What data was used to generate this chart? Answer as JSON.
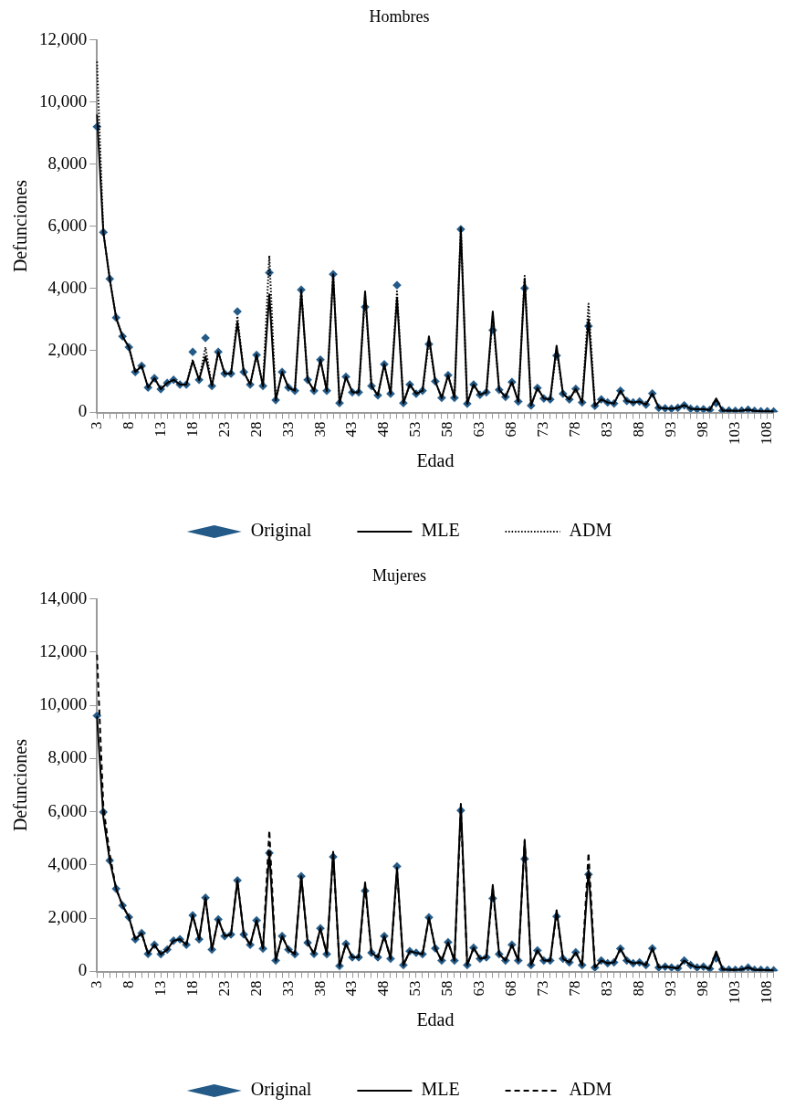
{
  "chart_data": [
    {
      "type": "line",
      "title": "Hombres",
      "xlabel": "Edad",
      "ylabel": "Defunciones",
      "legend": "bottom",
      "grid": false,
      "categories": [
        "3",
        null,
        null,
        null,
        null,
        "8",
        null,
        null,
        null,
        null,
        "13",
        null,
        null,
        null,
        null,
        "18",
        null,
        null,
        null,
        null,
        "23",
        null,
        null,
        null,
        null,
        "28",
        null,
        null,
        null,
        null,
        "33",
        null,
        null,
        null,
        null,
        "38",
        null,
        null,
        null,
        null,
        "43",
        null,
        null,
        null,
        null,
        "48",
        null,
        null,
        null,
        null,
        "53",
        null,
        null,
        null,
        null,
        "58",
        null,
        null,
        null,
        null,
        "63",
        null,
        null,
        null,
        null,
        "68",
        null,
        null,
        null,
        null,
        "73",
        null,
        null,
        null,
        null,
        "78",
        null,
        null,
        null,
        null,
        "83",
        null,
        null,
        null,
        null,
        "88",
        null,
        null,
        null,
        null,
        "93",
        null,
        null,
        null,
        null,
        "98",
        null,
        null,
        null,
        null,
        "103",
        null,
        null,
        null,
        null,
        "108",
        null
      ],
      "ylim": [
        0,
        12000
      ],
      "yticks": [
        0,
        {
          "value": 2000,
          "label": "2,000"
        },
        {
          "value": 4000,
          "label": "4,000"
        },
        {
          "value": 6000,
          "label": "6,000"
        },
        {
          "value": 8000,
          "label": "8,000"
        },
        {
          "value": 10000,
          "label": "10,000"
        },
        {
          "value": 12000,
          "label": "12,000"
        }
      ],
      "series": [
        {
          "name": "Original",
          "type": "scatter",
          "marker": "diamond",
          "color": "#235a87",
          "values": [
            9200,
            5800,
            4300,
            3050,
            2450,
            2100,
            1300,
            1500,
            800,
            1100,
            750,
            950,
            1050,
            900,
            900,
            1950,
            1050,
            2400,
            850,
            1950,
            1250,
            1250,
            3250,
            1300,
            900,
            1850,
            850,
            4500,
            400,
            1300,
            800,
            700,
            3950,
            1050,
            700,
            1700,
            700,
            4450,
            300,
            1150,
            650,
            650,
            3400,
            850,
            550,
            1550,
            600,
            4100,
            300,
            900,
            600,
            700,
            2200,
            1000,
            470,
            1200,
            470,
            5900,
            280,
            900,
            570,
            650,
            2650,
            730,
            500,
            980,
            350,
            4000,
            220,
            790,
            450,
            420,
            1830,
            600,
            420,
            760,
            320,
            2780,
            210,
            420,
            320,
            290,
            700,
            370,
            320,
            350,
            250,
            610,
            150,
            130,
            120,
            150,
            230,
            120,
            100,
            100,
            80,
            300,
            60,
            60,
            50,
            60,
            90,
            50,
            40,
            40,
            30
          ]
        },
        {
          "name": "MLE",
          "type": "line",
          "marker": "none",
          "line_style": "solid",
          "color": "#000000",
          "values": [
            9600,
            5800,
            4300,
            3050,
            2450,
            2100,
            1300,
            1500,
            800,
            1100,
            750,
            950,
            1050,
            900,
            900,
            1650,
            1050,
            1800,
            850,
            1950,
            1250,
            1250,
            2900,
            1300,
            900,
            1850,
            850,
            3800,
            400,
            1300,
            800,
            700,
            3900,
            1050,
            700,
            1700,
            700,
            4450,
            300,
            1150,
            650,
            650,
            3900,
            850,
            550,
            1550,
            600,
            3700,
            300,
            900,
            600,
            700,
            2450,
            1000,
            470,
            1200,
            470,
            5900,
            280,
            900,
            570,
            650,
            3250,
            730,
            500,
            980,
            350,
            4300,
            220,
            790,
            450,
            420,
            2150,
            600,
            420,
            760,
            320,
            3000,
            210,
            420,
            320,
            290,
            700,
            370,
            320,
            350,
            250,
            610,
            150,
            130,
            120,
            150,
            230,
            120,
            100,
            100,
            80,
            450,
            60,
            60,
            50,
            60,
            90,
            50,
            40,
            40,
            30
          ]
        },
        {
          "name": "ADM",
          "type": "line",
          "marker": "none",
          "line_style": "dotted",
          "color": "#000000",
          "values": [
            11300,
            5800,
            4300,
            3050,
            2450,
            2100,
            1300,
            1500,
            800,
            1100,
            750,
            950,
            1050,
            900,
            900,
            1700,
            1050,
            2100,
            850,
            1950,
            1250,
            1250,
            3100,
            1300,
            900,
            1850,
            850,
            5050,
            400,
            1300,
            800,
            700,
            3950,
            1050,
            700,
            1700,
            700,
            4450,
            300,
            1150,
            650,
            650,
            3800,
            850,
            550,
            1550,
            600,
            3900,
            300,
            900,
            600,
            700,
            2300,
            1000,
            470,
            1200,
            470,
            5950,
            280,
            900,
            570,
            650,
            3100,
            730,
            500,
            980,
            350,
            4400,
            220,
            790,
            450,
            420,
            2000,
            600,
            420,
            760,
            320,
            3500,
            210,
            420,
            320,
            290,
            700,
            370,
            320,
            350,
            250,
            610,
            150,
            130,
            120,
            150,
            230,
            120,
            100,
            100,
            80,
            400,
            60,
            60,
            50,
            60,
            90,
            50,
            40,
            40,
            30
          ]
        }
      ]
    },
    {
      "type": "line",
      "title": "Mujeres",
      "xlabel": "Edad",
      "ylabel": "Defunciones",
      "legend": "bottom",
      "grid": false,
      "categories": [
        "3",
        null,
        null,
        null,
        null,
        "8",
        null,
        null,
        null,
        null,
        "13",
        null,
        null,
        null,
        null,
        "18",
        null,
        null,
        null,
        null,
        "23",
        null,
        null,
        null,
        null,
        "28",
        null,
        null,
        null,
        null,
        "33",
        null,
        null,
        null,
        null,
        "38",
        null,
        null,
        null,
        null,
        "43",
        null,
        null,
        null,
        null,
        "48",
        null,
        null,
        null,
        null,
        "53",
        null,
        null,
        null,
        null,
        "58",
        null,
        null,
        null,
        null,
        "63",
        null,
        null,
        null,
        null,
        "68",
        null,
        null,
        null,
        null,
        "73",
        null,
        null,
        null,
        null,
        "78",
        null,
        null,
        null,
        null,
        "83",
        null,
        null,
        null,
        null,
        "88",
        null,
        null,
        null,
        null,
        "93",
        null,
        null,
        null,
        null,
        "98",
        null,
        null,
        null,
        null,
        "103",
        null,
        null,
        null,
        null,
        "108",
        null
      ],
      "ylim": [
        0,
        14000
      ],
      "yticks": [
        0,
        {
          "value": 2000,
          "label": "2,000"
        },
        {
          "value": 4000,
          "label": "4,000"
        },
        {
          "value": 6000,
          "label": "6,000"
        },
        {
          "value": 8000,
          "label": "8,000"
        },
        {
          "value": 10000,
          "label": "10,000"
        },
        {
          "value": 12000,
          "label": "12,000"
        },
        {
          "value": 14000,
          "label": "14,000"
        }
      ],
      "series": [
        {
          "name": "Original",
          "type": "scatter",
          "marker": "diamond",
          "color": "#235a87",
          "values": [
            9610,
            5990,
            4170,
            3110,
            2480,
            2040,
            1210,
            1440,
            660,
            1000,
            650,
            820,
            1160,
            1210,
            1000,
            2110,
            1210,
            2770,
            820,
            1960,
            1330,
            1390,
            3420,
            1390,
            1000,
            1920,
            860,
            4450,
            410,
            1330,
            820,
            650,
            3580,
            1080,
            660,
            1620,
            650,
            4310,
            210,
            1040,
            530,
            530,
            3030,
            700,
            530,
            1330,
            480,
            3950,
            240,
            760,
            700,
            650,
            2030,
            870,
            410,
            1100,
            410,
            6050,
            240,
            890,
            480,
            530,
            2750,
            650,
            410,
            1000,
            410,
            4230,
            240,
            790,
            410,
            410,
            2070,
            480,
            340,
            720,
            240,
            3650,
            150,
            410,
            310,
            340,
            860,
            410,
            310,
            340,
            240,
            870,
            150,
            180,
            150,
            120,
            410,
            240,
            150,
            180,
            100,
            490,
            80,
            70,
            60,
            80,
            150,
            60,
            60,
            50,
            40
          ]
        },
        {
          "name": "MLE",
          "type": "line",
          "marker": "none",
          "line_style": "solid",
          "color": "#000000",
          "values": [
            9600,
            5800,
            4170,
            3110,
            2480,
            2040,
            1210,
            1440,
            660,
            1000,
            650,
            820,
            1160,
            1210,
            1000,
            2110,
            1210,
            2770,
            820,
            1960,
            1330,
            1390,
            3420,
            1390,
            1000,
            1920,
            860,
            4500,
            410,
            1330,
            820,
            650,
            3580,
            1080,
            660,
            1620,
            650,
            4500,
            210,
            1040,
            530,
            530,
            3350,
            700,
            530,
            1330,
            480,
            3900,
            240,
            760,
            700,
            650,
            2030,
            870,
            410,
            1100,
            410,
            6300,
            240,
            890,
            480,
            530,
            3250,
            650,
            410,
            1000,
            410,
            4950,
            240,
            790,
            410,
            410,
            2300,
            480,
            340,
            720,
            240,
            3800,
            150,
            410,
            310,
            340,
            860,
            410,
            310,
            340,
            240,
            870,
            150,
            180,
            150,
            120,
            410,
            240,
            150,
            180,
            100,
            750,
            80,
            70,
            60,
            80,
            150,
            60,
            60,
            50,
            40
          ]
        },
        {
          "name": "ADM",
          "type": "line",
          "marker": "none",
          "line_style": "dashed",
          "color": "#000000",
          "values": [
            11900,
            6200,
            4400,
            3110,
            2480,
            2040,
            1210,
            1440,
            660,
            1000,
            650,
            820,
            1160,
            1210,
            1000,
            2110,
            1210,
            2770,
            820,
            1960,
            1330,
            1390,
            3420,
            1390,
            1000,
            1920,
            860,
            5300,
            410,
            1330,
            820,
            650,
            3580,
            1080,
            660,
            1620,
            650,
            4400,
            210,
            1040,
            530,
            530,
            3200,
            700,
            530,
            1330,
            480,
            3800,
            240,
            760,
            700,
            650,
            2030,
            870,
            410,
            1100,
            410,
            6100,
            240,
            890,
            480,
            530,
            3100,
            650,
            410,
            1000,
            410,
            4900,
            240,
            790,
            410,
            410,
            2200,
            480,
            340,
            720,
            240,
            4450,
            150,
            410,
            310,
            340,
            860,
            410,
            310,
            340,
            240,
            870,
            150,
            180,
            150,
            120,
            410,
            240,
            150,
            180,
            100,
            650,
            80,
            70,
            60,
            80,
            150,
            60,
            60,
            50,
            40
          ]
        }
      ]
    }
  ]
}
